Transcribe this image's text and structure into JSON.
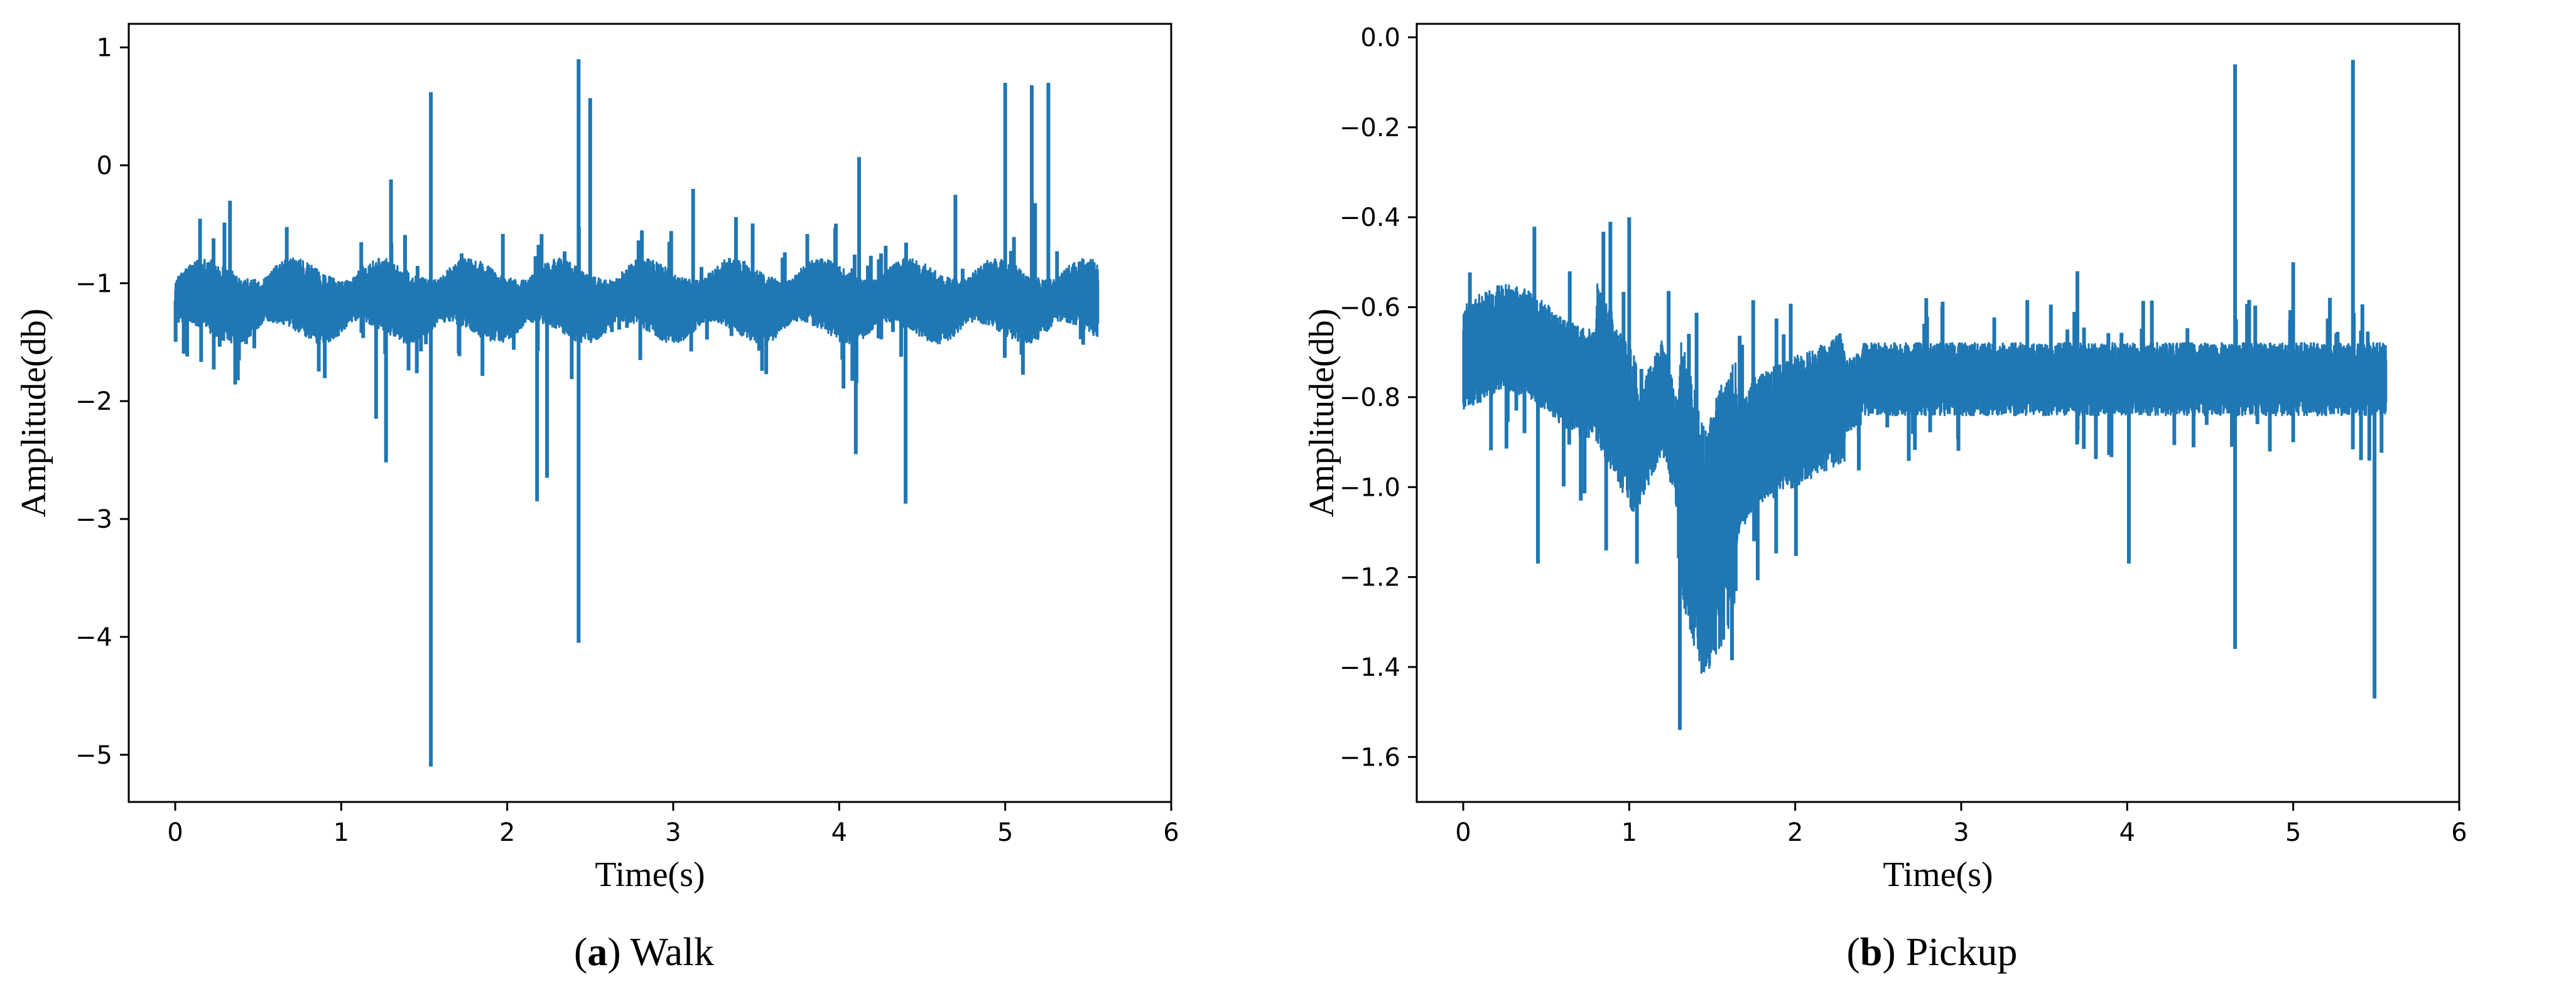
{
  "chart_data": [
    {
      "type": "line",
      "id": "walk",
      "caption_letter": "a",
      "caption_text": "Walk",
      "xlabel": "Time(s)",
      "ylabel": "Amplitude(db)",
      "xlim": [
        -0.28,
        6.0
      ],
      "ylim": [
        -5.4,
        1.2
      ],
      "xticks": [
        0,
        1,
        2,
        3,
        4,
        5,
        6
      ],
      "xtick_labels": [
        "0",
        "1",
        "2",
        "3",
        "4",
        "5",
        "6"
      ],
      "yticks": [
        1,
        0,
        -1,
        -2,
        -3,
        -4,
        -5
      ],
      "ytick_labels": [
        "1",
        "0",
        "−1",
        "−2",
        "−3",
        "−4",
        "−5"
      ],
      "series": [
        {
          "color": "#1f77b4",
          "duration_s": 5.56,
          "baseline": -1.15,
          "noise_amplitude": 0.28,
          "spikes": [
            {
              "t": 1.54,
              "min": -5.1,
              "max": 0.62
            },
            {
              "t": 2.43,
              "min": -4.05,
              "max": 0.9
            },
            {
              "t": 2.5,
              "min": -1.2,
              "max": 0.57
            },
            {
              "t": 2.18,
              "min": -2.85,
              "max": -1.0
            },
            {
              "t": 2.24,
              "min": -2.65,
              "max": -1.0
            },
            {
              "t": 1.21,
              "min": -2.15,
              "max": -1.0
            },
            {
              "t": 1.27,
              "min": -2.52,
              "max": -1.0
            },
            {
              "t": 4.1,
              "min": -2.45,
              "max": -1.0
            },
            {
              "t": 4.4,
              "min": -2.87,
              "max": -1.0
            },
            {
              "t": 4.12,
              "min": -1.2,
              "max": 0.07
            },
            {
              "t": 5.0,
              "min": -1.2,
              "max": 0.7
            },
            {
              "t": 5.26,
              "min": -1.2,
              "max": 0.7
            },
            {
              "t": 5.16,
              "min": -1.2,
              "max": 0.68
            },
            {
              "t": 0.33,
              "min": -1.2,
              "max": -0.3
            },
            {
              "t": 1.3,
              "min": -1.2,
              "max": -0.12
            },
            {
              "t": 3.12,
              "min": -1.2,
              "max": -0.2
            },
            {
              "t": 4.7,
              "min": -1.2,
              "max": -0.25
            },
            {
              "t": 5.18,
              "min": -1.2,
              "max": -0.32
            }
          ]
        }
      ]
    },
    {
      "type": "line",
      "id": "pickup",
      "caption_letter": "b",
      "caption_text": "Pickup",
      "xlabel": "Time(s)",
      "ylabel": "Amplitude(db)",
      "xlim": [
        -0.28,
        6.0
      ],
      "ylim": [
        -1.7,
        0.03
      ],
      "xticks": [
        0,
        1,
        2,
        3,
        4,
        5,
        6
      ],
      "xtick_labels": [
        "0",
        "1",
        "2",
        "3",
        "4",
        "5",
        "6"
      ],
      "yticks": [
        0.0,
        -0.2,
        -0.4,
        -0.6,
        -0.8,
        -1.0,
        -1.2,
        -1.4,
        -1.6
      ],
      "ytick_labels": [
        "0.0",
        "−0.2",
        "−0.4",
        "−0.6",
        "−0.8",
        "−1.0",
        "−1.2",
        "−1.4",
        "−1.6"
      ],
      "series": [
        {
          "color": "#1f77b4",
          "duration_s": 5.56,
          "baseline": -0.76,
          "noise_amplitude": 0.07,
          "spikes": [
            {
              "t": 4.65,
              "min": -1.36,
              "max": -0.06
            },
            {
              "t": 5.36,
              "min": -0.8,
              "max": -0.05
            },
            {
              "t": 5.49,
              "min": -1.47,
              "max": -0.72
            },
            {
              "t": 4.01,
              "min": -1.17,
              "max": -0.72
            },
            {
              "t": 0.45,
              "min": -1.17,
              "max": -0.72
            },
            {
              "t": 1.0,
              "min": -0.9,
              "max": -0.4
            },
            {
              "t": 5.0,
              "min": -0.9,
              "max": -0.5
            },
            {
              "t": 3.7,
              "min": -0.9,
              "max": -0.52
            }
          ]
        }
      ]
    }
  ]
}
